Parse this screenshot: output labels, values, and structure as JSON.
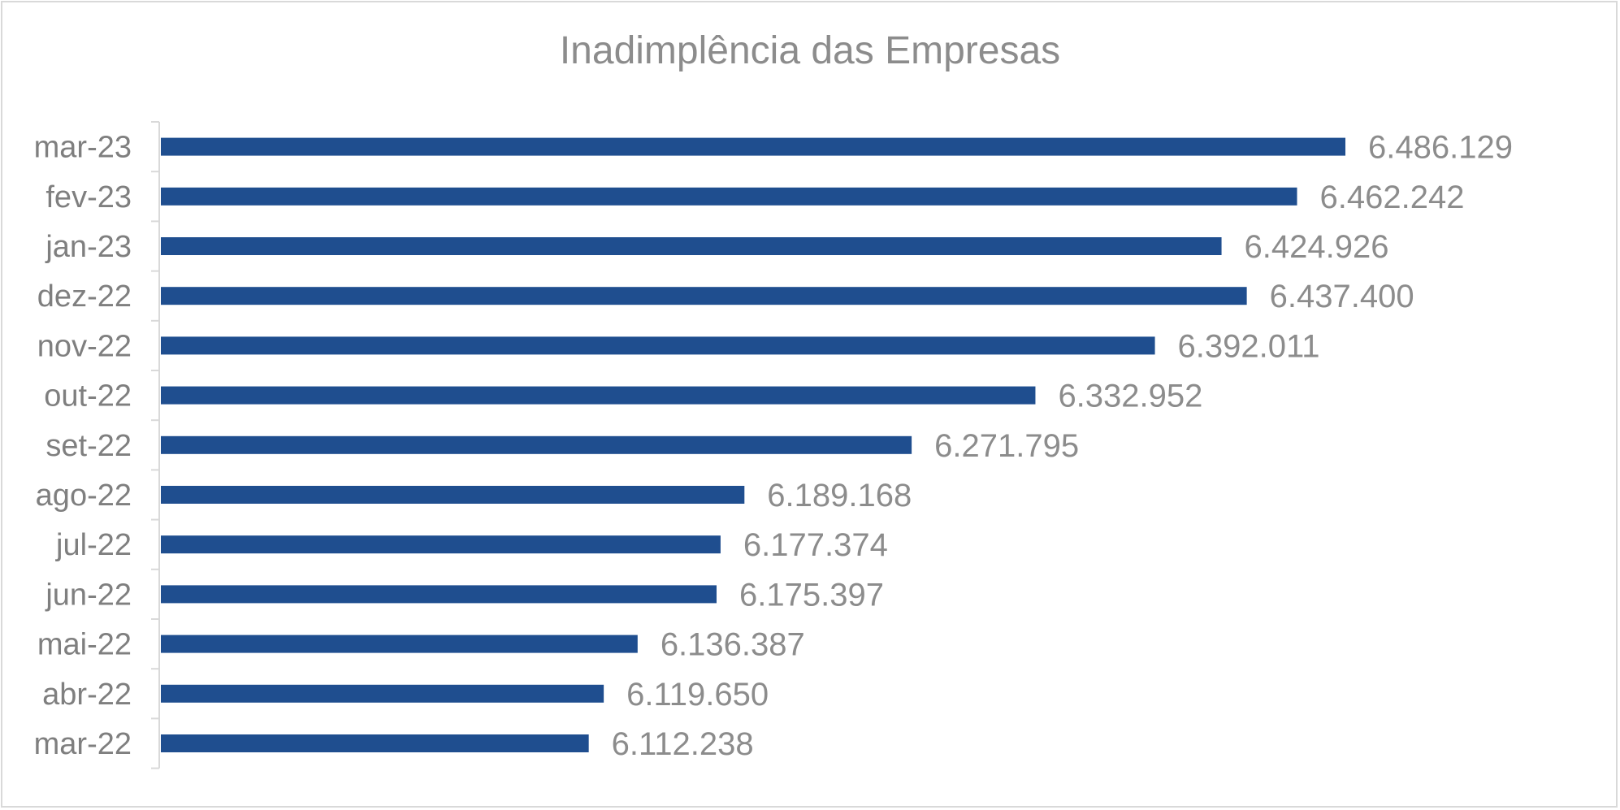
{
  "chart_data": {
    "type": "bar",
    "orientation": "horizontal",
    "title": "Inadimplência das Empresas",
    "xlabel": "",
    "ylabel": "",
    "categories": [
      "mar-23",
      "fev-23",
      "jan-23",
      "dez-22",
      "nov-22",
      "out-22",
      "set-22",
      "ago-22",
      "jul-22",
      "jun-22",
      "mai-22",
      "abr-22",
      "mar-22"
    ],
    "values": [
      6486129,
      6462242,
      6424926,
      6437400,
      6392011,
      6332952,
      6271795,
      6189168,
      6177374,
      6175397,
      6136387,
      6119650,
      6112238
    ],
    "data_labels": [
      "6.486.129",
      "6.462.242",
      "6.424.926",
      "6.437.400",
      "6.392.011",
      "6.332.952",
      "6.271.795",
      "6.189.168",
      "6.177.374",
      "6.175.397",
      "6.136.387",
      "6.119.650",
      "6.112.238"
    ],
    "xlim": [
      5900000,
      6500000
    ],
    "grid": false,
    "legend": "none",
    "bar_color": "#1f4e8f"
  }
}
